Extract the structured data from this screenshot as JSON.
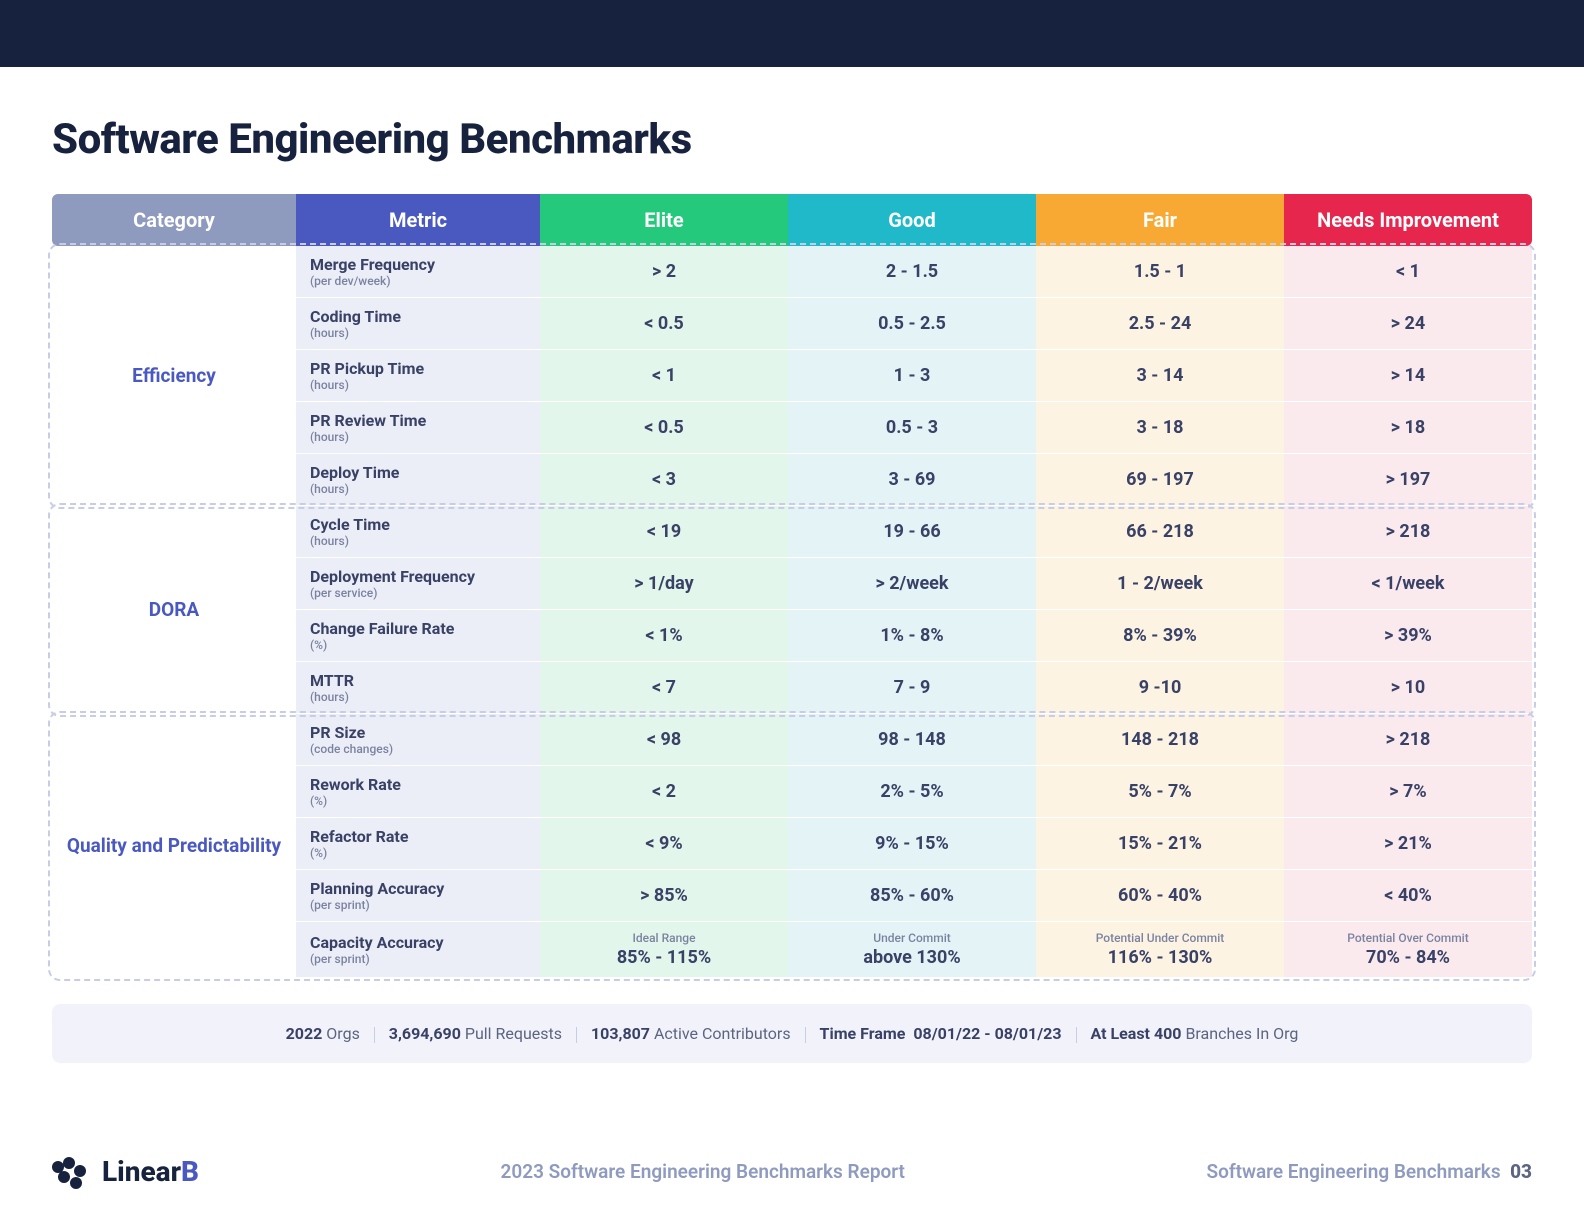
{
  "page": {
    "title": "Software Engineering Benchmarks",
    "top_bar_color": "#17233e"
  },
  "headers": {
    "category": "Category",
    "metric": "Metric",
    "tiers": [
      "Elite",
      "Good",
      "Fair",
      "Needs Improvement"
    ],
    "colors": {
      "category": "#8f9abf",
      "metric": "#4a59c0",
      "elite": "#25c97b",
      "good": "#1fb9c9",
      "fair": "#f7a934",
      "needs": "#e7264e"
    }
  },
  "tier_bg_colors": {
    "elite": "#e3f6eb",
    "good": "#e3f3f6",
    "fair": "#fcf3e3",
    "needs": "#faeaee"
  },
  "categories": [
    {
      "name": "Efficiency",
      "metrics": [
        {
          "name": "Merge Frequency",
          "unit": "(per dev/week)",
          "values": [
            "> 2",
            "2 - 1.5",
            "1.5 - 1",
            "< 1"
          ]
        },
        {
          "name": "Coding Time",
          "unit": "(hours)",
          "values": [
            "< 0.5",
            "0.5 - 2.5",
            "2.5 - 24",
            "> 24"
          ]
        },
        {
          "name": "PR Pickup Time",
          "unit": "(hours)",
          "values": [
            "< 1",
            "1 - 3",
            "3 - 14",
            "> 14"
          ]
        },
        {
          "name": "PR Review Time",
          "unit": "(hours)",
          "values": [
            "< 0.5",
            "0.5 - 3",
            "3 - 18",
            "> 18"
          ]
        },
        {
          "name": "Deploy Time",
          "unit": "(hours)",
          "values": [
            "< 3",
            "3 - 69",
            "69 - 197",
            "> 197"
          ]
        }
      ]
    },
    {
      "name": "DORA",
      "metrics": [
        {
          "name": "Cycle Time",
          "unit": "(hours)",
          "values": [
            "< 19",
            "19 - 66",
            "66 - 218",
            "> 218"
          ]
        },
        {
          "name": "Deployment Frequency",
          "unit": "(per service)",
          "values": [
            "> 1/day",
            "> 2/week",
            "1 - 2/week",
            "< 1/week"
          ]
        },
        {
          "name": "Change Failure Rate",
          "unit": "(%)",
          "values": [
            "< 1%",
            "1% - 8%",
            "8% - 39%",
            "> 39%"
          ]
        },
        {
          "name": "MTTR",
          "unit": "(hours)",
          "values": [
            "< 7",
            "7 - 9",
            "9 -10",
            "> 10"
          ]
        }
      ]
    },
    {
      "name": "Quality and Predictability",
      "metrics": [
        {
          "name": "PR Size",
          "unit": "(code changes)",
          "values": [
            "< 98",
            "98 - 148",
            "148 - 218",
            "> 218"
          ]
        },
        {
          "name": "Rework Rate",
          "unit": "(%)",
          "values": [
            "< 2",
            "2% - 5%",
            "5% - 7%",
            "> 7%"
          ]
        },
        {
          "name": "Refactor Rate",
          "unit": "(%)",
          "values": [
            "< 9%",
            "9% - 15%",
            "15% - 21%",
            "> 21%"
          ]
        },
        {
          "name": "Planning Accuracy",
          "unit": "(per sprint)",
          "values": [
            "> 85%",
            "85% - 60%",
            "60% - 40%",
            "< 40%"
          ]
        },
        {
          "name": "Capacity Accuracy",
          "unit": "(per sprint)",
          "values": [
            "85% - 115%",
            "above 130%",
            "116% - 130%",
            "70% - 84%"
          ],
          "value_labels": [
            "Ideal Range",
            "Under Commit",
            "Potential Under Commit",
            "Potential Over Commit"
          ]
        }
      ]
    }
  ],
  "stats": {
    "year": "2022",
    "year_label": "Orgs",
    "pull_requests": "3,694,690",
    "pull_requests_label": "Pull Requests",
    "contributors": "103,807",
    "contributors_label": "Active Contributors",
    "timeframe_label": "Time Frame",
    "timeframe": "08/01/22 - 08/01/23",
    "branches_label": "At Least",
    "branches_n": "400",
    "branches_suffix": "Branches In Org"
  },
  "footer": {
    "brand_main": "Linear",
    "brand_accent": "B",
    "mid": "2023 Software Engineering Benchmarks Report",
    "right_text": "Software Engineering Benchmarks",
    "right_page": "03"
  }
}
